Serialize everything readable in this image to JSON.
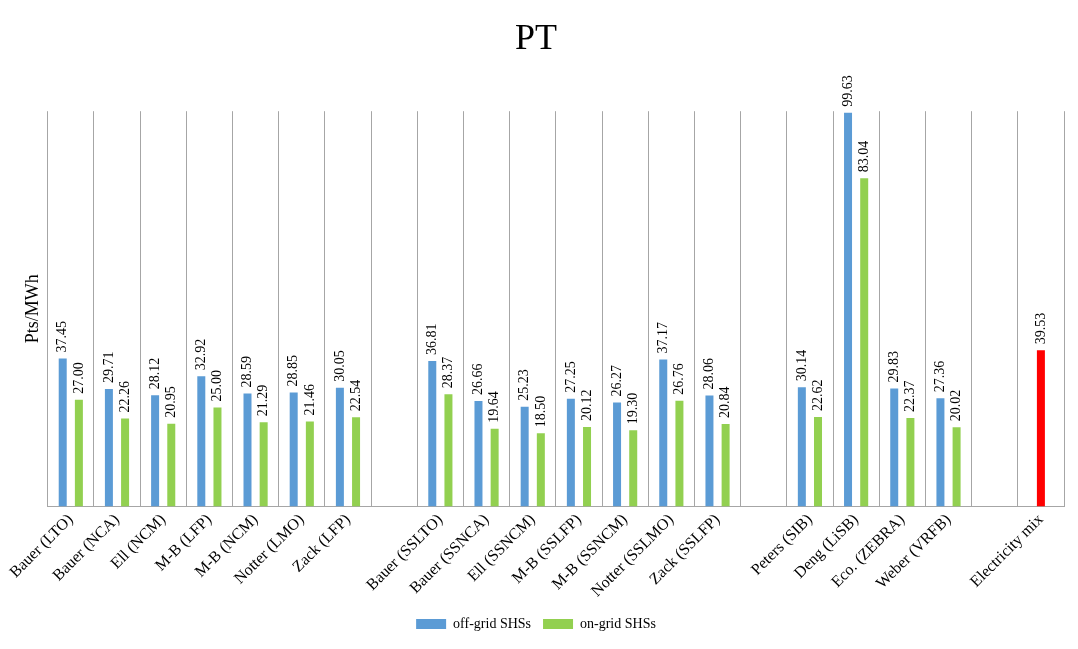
{
  "chart_data": {
    "type": "bar",
    "title": "PT",
    "ylabel": "Pts/MWh",
    "categories": [
      "Bauer (LTO)",
      "Bauer (NCA)",
      "Ell (NCM)",
      "M-B (LFP)",
      "M-B (NCM)",
      "Notter (LMO)",
      "Zack (LFP)",
      null,
      "Bauer (SSLTO)",
      "Bauer (SSNCA)",
      "Ell (SSNCM)",
      "M-B (SSLFP)",
      "M-B (SSNCM)",
      "Notter (SSLMO)",
      "Zack (SSLFP)",
      null,
      "Peters (SIB)",
      "Deng (LiSB)",
      "Eco. (ZEBRA)",
      "Weber (VRFB)",
      null,
      "Electricity mix"
    ],
    "series": [
      {
        "name": "off-grid SHSs",
        "color": "#5b9bd5",
        "values": [
          37.45,
          29.71,
          28.12,
          32.92,
          28.59,
          28.85,
          30.05,
          null,
          36.81,
          26.66,
          25.23,
          27.25,
          26.27,
          37.17,
          28.06,
          null,
          30.14,
          99.63,
          29.83,
          27.36,
          null,
          null
        ],
        "value_labels": [
          "37.45",
          "29.71",
          "28.12",
          "32.92",
          "28.59",
          "28.85",
          "30.05",
          null,
          "36.81",
          "26.66",
          "25.23",
          "27.25",
          "26.27",
          "37.17",
          "28.06",
          null,
          "30.14",
          "99.63",
          "29.83",
          "27.36",
          null,
          null
        ]
      },
      {
        "name": "on-grid SHSs",
        "color": "#92d050",
        "values": [
          27.0,
          22.26,
          20.95,
          25.0,
          21.29,
          21.46,
          22.54,
          null,
          28.37,
          19.64,
          18.5,
          20.12,
          19.3,
          26.76,
          20.84,
          null,
          22.62,
          83.04,
          22.37,
          20.02,
          null,
          null
        ],
        "value_labels": [
          "27.00",
          "22.26",
          "20.95",
          "25.00",
          "21.29",
          "21.46",
          "22.54",
          null,
          "28.37",
          "19.64",
          "18.50",
          "20.12",
          "19.30",
          "26.76",
          "20.84",
          null,
          "22.62",
          "83.04",
          "22.37",
          "20.02",
          null,
          null
        ]
      },
      {
        "color": "#ff0000",
        "values": [
          null,
          null,
          null,
          null,
          null,
          null,
          null,
          null,
          null,
          null,
          null,
          null,
          null,
          null,
          null,
          null,
          null,
          null,
          null,
          null,
          null,
          39.53
        ],
        "value_labels": [
          null,
          null,
          null,
          null,
          null,
          null,
          null,
          null,
          null,
          null,
          null,
          null,
          null,
          null,
          null,
          null,
          null,
          null,
          null,
          null,
          null,
          "39.53"
        ]
      }
    ],
    "ylim": [
      0,
      100
    ],
    "grid": "x",
    "legend": "bottom",
    "tick_labels": "x"
  }
}
